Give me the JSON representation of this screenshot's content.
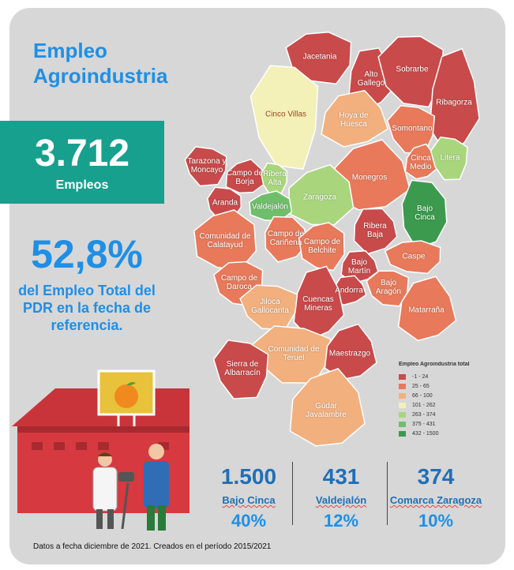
{
  "header": {
    "title": "Empleo Agroindustria"
  },
  "total": {
    "value": "3.712",
    "label": "Empleos"
  },
  "share": {
    "value": "52,8%",
    "text": "del Empleo Total del PDR en la fecha de referencia."
  },
  "map": {
    "legend": {
      "title": "Empleo Agroindustria total",
      "items": [
        {
          "label": "-1 - 24",
          "color": "#c94a4a"
        },
        {
          "label": "25 - 65",
          "color": "#e8795a"
        },
        {
          "label": "66 - 100",
          "color": "#f2b07e"
        },
        {
          "label": "101 - 262",
          "color": "#f3f0b8"
        },
        {
          "label": "263 - 374",
          "color": "#a9d67d"
        },
        {
          "label": "375 - 431",
          "color": "#6fbf6a"
        },
        {
          "label": "432 - 1500",
          "color": "#3c9a4f"
        }
      ]
    },
    "regions": [
      {
        "label": "Jacetania",
        "color": "#c94a4a"
      },
      {
        "label": "Alto Gallego",
        "color": "#c94a4a"
      },
      {
        "label": "Sobrarbe",
        "color": "#c94a4a"
      },
      {
        "label": "Ribagorza",
        "color": "#c94a4a"
      },
      {
        "label": "Cinco Villas",
        "color": "#f3f0b8"
      },
      {
        "label": "Hoya de Huesca",
        "color": "#f2b07e"
      },
      {
        "label": "Somontano",
        "color": "#e8795a"
      },
      {
        "label": "Cinca Medio",
        "color": "#e8795a"
      },
      {
        "label": "Litera",
        "color": "#a9d67d"
      },
      {
        "label": "Monegros",
        "color": "#e8795a"
      },
      {
        "label": "Tarazona y Moncayo",
        "color": "#c94a4a"
      },
      {
        "label": "Campo de Borja",
        "color": "#c94a4a"
      },
      {
        "label": "Ribera Alta",
        "color": "#a9d67d"
      },
      {
        "label": "Zaragoza",
        "color": "#a9d67d"
      },
      {
        "label": "Aranda",
        "color": "#c94a4a"
      },
      {
        "label": "Valdejalón",
        "color": "#6fbf6a"
      },
      {
        "label": "Bajo Cinca",
        "color": "#3c9a4f"
      },
      {
        "label": "Comunidad de Calatayud",
        "color": "#e8795a"
      },
      {
        "label": "Campo de Cariñena",
        "color": "#e8795a"
      },
      {
        "label": "Campo de Belchite",
        "color": "#e8795a"
      },
      {
        "label": "Ribera Baja",
        "color": "#c94a4a"
      },
      {
        "label": "Caspe",
        "color": "#e8795a"
      },
      {
        "label": "Bajo Martín",
        "color": "#c94a4a"
      },
      {
        "label": "Campo de Daroca",
        "color": "#e8795a"
      },
      {
        "label": "Andorra",
        "color": "#c94a4a"
      },
      {
        "label": "Bajo Aragón",
        "color": "#e8795a"
      },
      {
        "label": "Cuencas Mineras",
        "color": "#c94a4a"
      },
      {
        "label": "Jiloca Gallocanta",
        "color": "#f2b07e"
      },
      {
        "label": "Matarraña",
        "color": "#e8795a"
      },
      {
        "label": "Comunidad de Teruel",
        "color": "#f2b07e"
      },
      {
        "label": "Maestrazgo",
        "color": "#c94a4a"
      },
      {
        "label": "Sierra de Albarracín",
        "color": "#c94a4a"
      },
      {
        "label": "Gúdar Javalambre",
        "color": "#f2b07e"
      }
    ]
  },
  "highlights": [
    {
      "value": "1.500",
      "label": "Bajo Cinca",
      "share": "40%"
    },
    {
      "value": "431",
      "label": "Valdejalón",
      "share": "12%"
    },
    {
      "value": "374",
      "label": "Comarca Zaragoza",
      "share": "10%"
    }
  ],
  "footnote": "Datos a fecha diciembre de 2021. Creados en el período 2015/2021"
}
